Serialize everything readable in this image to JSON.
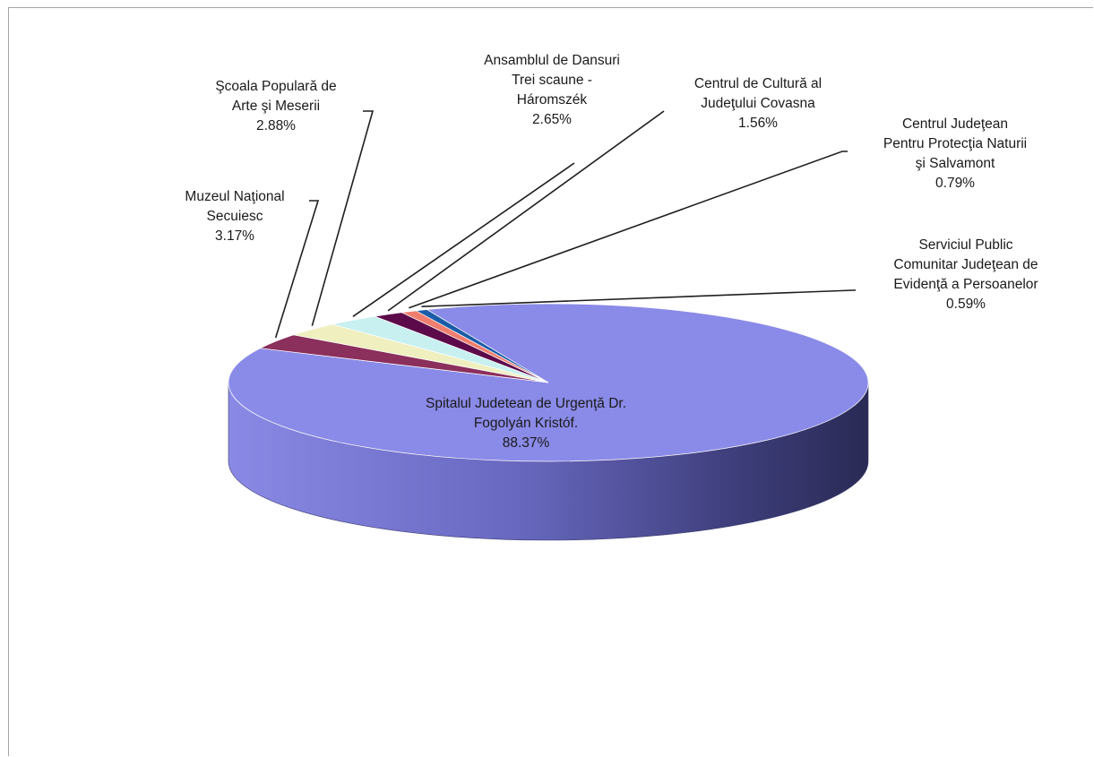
{
  "chart_data": {
    "type": "pie",
    "three_d": true,
    "legend": "none",
    "slices": [
      {
        "key": "spital",
        "lines": [
          "Spitalul Judetean de  Urgenţă Dr.",
          "Fogolyán Kristóf."
        ],
        "value_label": "88.37%",
        "value": 88.37,
        "color": "#8a8ae8"
      },
      {
        "key": "muzeu",
        "lines": [
          "Muzeul  Naţional",
          "Secuiesc"
        ],
        "value_label": "3.17%",
        "value": 3.17,
        "color": "#8b2f5c"
      },
      {
        "key": "scoala",
        "lines": [
          "Şcoala Populară de",
          "Arte şi Meserii"
        ],
        "value_label": "2.88%",
        "value": 2.88,
        "color": "#efefbf"
      },
      {
        "key": "ansamblu",
        "lines": [
          "Ansamblul de Dansuri",
          "Trei scaune -",
          "Háromszék"
        ],
        "value_label": "2.65%",
        "value": 2.65,
        "color": "#c8f0f0"
      },
      {
        "key": "cultura",
        "lines": [
          "Centrul de Cultură al",
          "Judeţului Covasna"
        ],
        "value_label": "1.56%",
        "value": 1.56,
        "color": "#5c0a4a"
      },
      {
        "key": "natura",
        "lines": [
          "Centrul  Judeţean",
          "Pentru Protecţia Naturii",
          "şi Salvamont"
        ],
        "value_label": "0.79%",
        "value": 0.79,
        "color": "#f07e6e"
      },
      {
        "key": "evidenta",
        "lines": [
          "Serviciul Public",
          "Comunitar Judeţean de",
          "Evidenţă a Persoanelor"
        ],
        "value_label": "0.59%",
        "value": 0.59,
        "color": "#1a5ca8"
      }
    ]
  }
}
